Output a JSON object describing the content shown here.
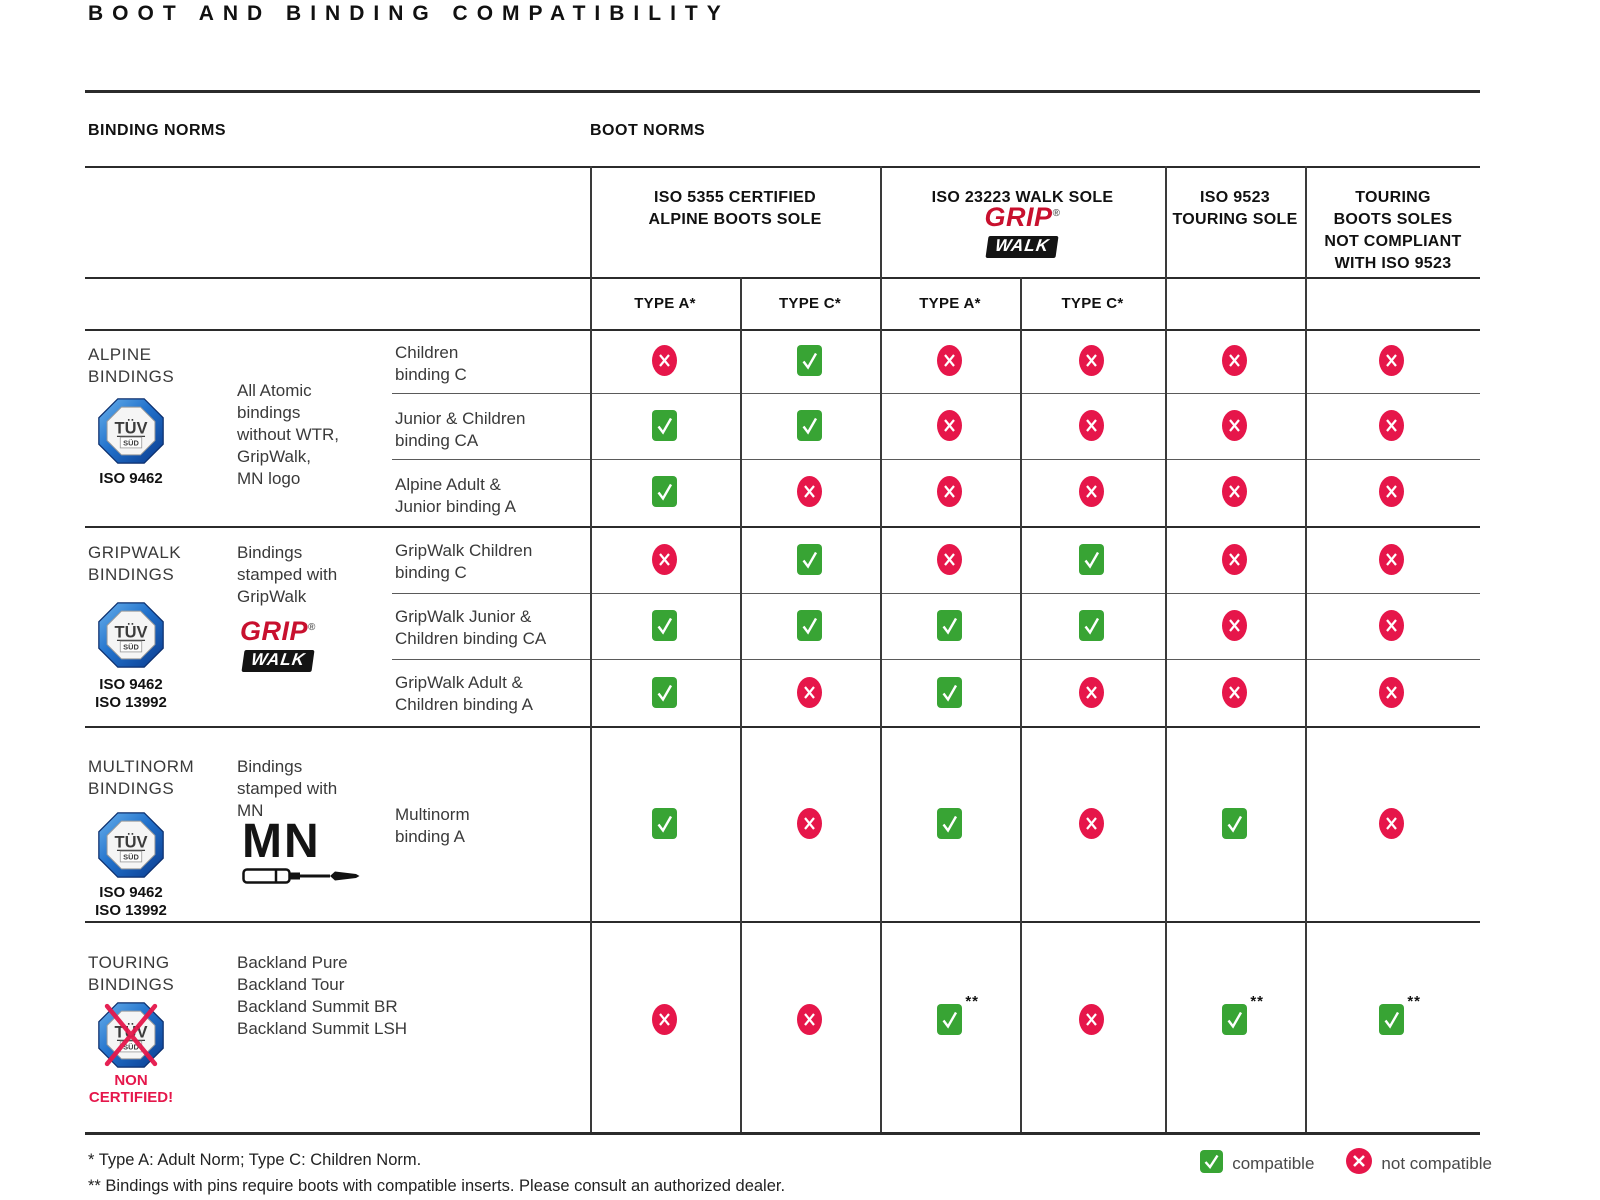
{
  "title": "BOOT AND BINDING COMPATIBILITY",
  "axis_headers": {
    "binding_norms": "BINDING NORMS",
    "boot_norms": "BOOT NORMS"
  },
  "boot_norm_columns": [
    {
      "label": "ISO 5355 CERTIFIED\nALPINE BOOTS SOLE",
      "has_gripwalk_logo": false
    },
    {
      "label": "ISO 23223 WALK SOLE",
      "has_gripwalk_logo": true
    },
    {
      "label": "ISO 9523\nTOURING SOLE",
      "has_gripwalk_logo": false
    },
    {
      "label": "TOURING\nBOOTS SOLES\nNOT COMPLIANT\nWITH ISO 9523",
      "has_gripwalk_logo": false
    }
  ],
  "type_row": [
    "TYPE A*",
    "TYPE C*",
    "TYPE A*",
    "TYPE C*",
    "",
    ""
  ],
  "sections": [
    {
      "label": "ALPINE\nBINDINGS",
      "certification": "ISO 9462",
      "tuv_crossed": false,
      "description": "All Atomic\nbindings\nwithout WTR,\nGripWalk,\nMN logo",
      "rows": [
        {
          "name": "Children\nbinding C",
          "marks": [
            "no",
            "yes",
            "no",
            "no",
            "no",
            "no"
          ]
        },
        {
          "name": "Junior & Children\nbinding CA",
          "marks": [
            "yes",
            "yes",
            "no",
            "no",
            "no",
            "no"
          ]
        },
        {
          "name": "Alpine Adult &\nJunior binding A",
          "marks": [
            "yes",
            "no",
            "no",
            "no",
            "no",
            "no"
          ]
        }
      ]
    },
    {
      "label": "GRIPWALK\nBINDINGS",
      "certification": "ISO 9462\nISO 13992",
      "tuv_crossed": false,
      "description": "Bindings\nstamped with\nGripWalk",
      "rows": [
        {
          "name": "GripWalk Children\nbinding C",
          "marks": [
            "no",
            "yes",
            "no",
            "yes",
            "no",
            "no"
          ]
        },
        {
          "name": "GripWalk Junior &\nChildren binding CA",
          "marks": [
            "yes",
            "yes",
            "yes",
            "yes",
            "no",
            "no"
          ]
        },
        {
          "name": "GripWalk Adult &\nChildren binding A",
          "marks": [
            "yes",
            "no",
            "yes",
            "no",
            "no",
            "no"
          ]
        }
      ]
    },
    {
      "label": "MULTINORM\nBINDINGS",
      "certification": "ISO 9462\nISO 13992",
      "tuv_crossed": false,
      "description": "Bindings\nstamped with\nMN",
      "rows": [
        {
          "name": "Multinorm\nbinding A",
          "marks": [
            "yes",
            "no",
            "yes",
            "no",
            "yes",
            "no"
          ]
        }
      ]
    },
    {
      "label": "TOURING\nBINDINGS",
      "certification": "",
      "tuv_crossed": true,
      "tuv_note": "NON\nCERTIFIED!",
      "description": "Backland Pure\nBackland Tour\nBackland Summit BR\nBackland Summit LSH",
      "rows": [
        {
          "name": "",
          "marks": [
            "no",
            "no",
            "yes**",
            "no",
            "yes**",
            "yes**"
          ]
        }
      ]
    }
  ],
  "logos": {
    "tuv": {
      "line1": "TÜV",
      "line2": "SÜD"
    },
    "gripwalk": {
      "top": "GRIP",
      "bottom": "WALK",
      "reg": "®"
    },
    "mn": "MN"
  },
  "footnotes": [
    "* Type A: Adult Norm; Type C: Children Norm.",
    "** Bindings with pins require boots with compatible inserts. Please consult an authorized dealer."
  ],
  "legend": {
    "compatible": "compatible",
    "not_compatible": "not compatible"
  },
  "colors": {
    "compatible_green": "#38a434",
    "not_compatible_red": "#e6164a",
    "gripwalk_red": "#c8102e",
    "non_certified_red": "#e5174b",
    "tuv_blue_light": "#6ab2ec",
    "tuv_blue_mid": "#2272cc",
    "tuv_blue_dark": "#0a3a8d"
  }
}
